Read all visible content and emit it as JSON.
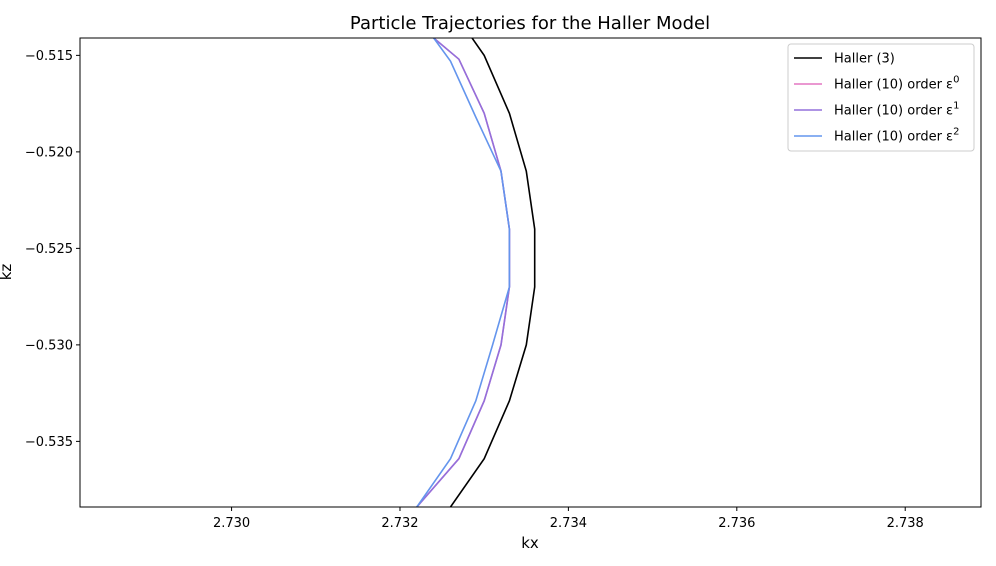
{
  "chart_data": {
    "type": "line",
    "title": "Particle Trajectories for the Haller Model",
    "xlabel": "kx",
    "ylabel": "kz",
    "xlim": [
      2.7282,
      2.7389
    ],
    "ylim": [
      -0.5384,
      -0.5141
    ],
    "xticks": [
      2.73,
      2.732,
      2.734,
      2.736,
      2.738
    ],
    "xtick_labels": [
      "2.730",
      "2.732",
      "2.734",
      "2.736",
      "2.738"
    ],
    "yticks": [
      -0.515,
      -0.52,
      -0.525,
      -0.53,
      -0.535
    ],
    "ytick_labels": [
      "−0.515",
      "−0.520",
      "−0.525",
      "−0.530",
      "−0.535"
    ],
    "grid": false,
    "legend_position": "top-right",
    "series": [
      {
        "name": "Haller (3)",
        "color": "#000000",
        "x": [
          2.7326,
          2.733,
          2.7333,
          2.7335,
          2.7336,
          2.7336,
          2.7335,
          2.7333,
          2.733,
          2.7326,
          2.7324
        ],
        "y": [
          -0.5384,
          -0.5359,
          -0.5329,
          -0.53,
          -0.527,
          -0.524,
          -0.521,
          -0.518,
          -0.515,
          -0.5125,
          -0.5141
        ]
      },
      {
        "name": "Haller (10) order ε⁰",
        "color": "#e377c2",
        "x": [
          2.7322,
          2.7327,
          2.733,
          2.7332,
          2.7333,
          2.7333,
          2.7332,
          2.733,
          2.7327,
          2.7324
        ],
        "y": [
          -0.5384,
          -0.5359,
          -0.5329,
          -0.53,
          -0.527,
          -0.524,
          -0.521,
          -0.518,
          -0.5152,
          -0.5141
        ]
      },
      {
        "name": "Haller (10) order ε¹",
        "color": "#9370db",
        "x": [
          2.7322,
          2.7327,
          2.733,
          2.7332,
          2.7333,
          2.7333,
          2.7332,
          2.733,
          2.7327,
          2.7324
        ],
        "y": [
          -0.5384,
          -0.5359,
          -0.5329,
          -0.53,
          -0.527,
          -0.524,
          -0.521,
          -0.518,
          -0.5152,
          -0.5141
        ]
      },
      {
        "name": "Haller (10) order ε²",
        "color": "#6495ed",
        "x": [
          2.7322,
          2.7326,
          2.7329,
          2.7331,
          2.7333,
          2.7333,
          2.7332,
          2.7329,
          2.7326,
          2.7324
        ],
        "y": [
          -0.5384,
          -0.5359,
          -0.5329,
          -0.53,
          -0.527,
          -0.524,
          -0.521,
          -0.5182,
          -0.5153,
          -0.5141
        ]
      }
    ],
    "legend": {
      "entries": [
        {
          "label": "Haller (3)",
          "color": "#000000"
        },
        {
          "label": "Haller (10) order ε",
          "sup": "0",
          "color": "#e377c2"
        },
        {
          "label": "Haller (10) order ε",
          "sup": "1",
          "color": "#9370db"
        },
        {
          "label": "Haller (10) order ε",
          "sup": "2",
          "color": "#6495ed"
        }
      ]
    }
  }
}
